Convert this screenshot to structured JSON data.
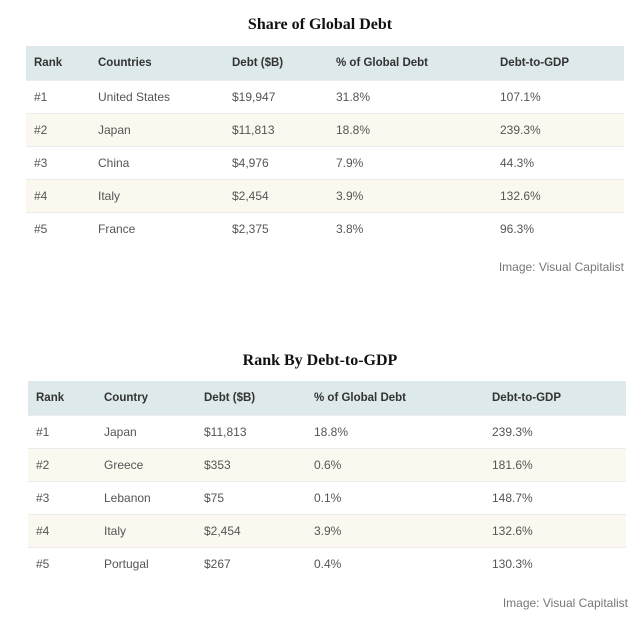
{
  "table1": {
    "title": "Share of Global Debt",
    "headers": [
      "Rank",
      "Countries",
      "Debt ($B)",
      "% of Global Debt",
      "Debt-to-GDP"
    ],
    "rows": [
      [
        "#1",
        "United States",
        "$19,947",
        "31.8%",
        "107.1%"
      ],
      [
        "#2",
        "Japan",
        "$11,813",
        "18.8%",
        "239.3%"
      ],
      [
        "#3",
        "China",
        "$4,976",
        "7.9%",
        "44.3%"
      ],
      [
        "#4",
        "Italy",
        "$2,454",
        "3.9%",
        "132.6%"
      ],
      [
        "#5",
        "France",
        "$2,375",
        "3.8%",
        "96.3%"
      ]
    ],
    "credit": "Image: Visual Capitalist"
  },
  "table2": {
    "title": "Rank By Debt-to-GDP",
    "headers": [
      "Rank",
      "Country",
      "Debt ($B)",
      "% of Global Debt",
      "Debt-to-GDP"
    ],
    "rows": [
      [
        "#1",
        "Japan",
        "$11,813",
        "18.8%",
        "239.3%"
      ],
      [
        "#2",
        "Greece",
        "$353",
        "0.6%",
        "181.6%"
      ],
      [
        "#3",
        "Lebanon",
        "$75",
        "0.1%",
        "148.7%"
      ],
      [
        "#4",
        "Italy",
        "$2,454",
        "3.9%",
        "132.6%"
      ],
      [
        "#5",
        "Portugal",
        "$267",
        "0.4%",
        "130.3%"
      ]
    ],
    "credit": "Image: Visual Capitalist"
  }
}
